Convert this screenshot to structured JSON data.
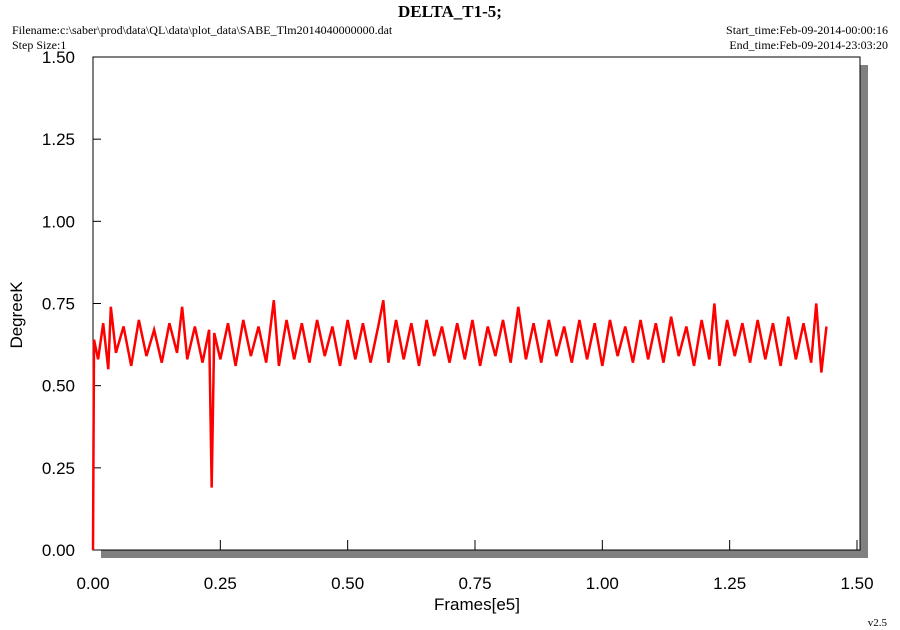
{
  "chart_data": {
    "type": "line",
    "title": "DELTA_T1-5;",
    "filename": "Filename:c:\\saber\\prod\\data\\QL\\data\\plot_data\\SABE_Tlm2014040000000.dat",
    "step_size": "Step Size:1",
    "start_time": "Start_time:Feb-09-2014-00:00:16",
    "end_time": "End_time:Feb-09-2014-23:03:20",
    "version": "v2.5",
    "x_label": "Frames[e5]",
    "y_label": "DegreeK",
    "xlim": [
      0,
      1.5
    ],
    "ylim": [
      0,
      1.5
    ],
    "xticks": [
      {
        "value": 0,
        "label": "0.00"
      },
      {
        "value": 0.25,
        "label": "0.25"
      },
      {
        "value": 0.5,
        "label": "0.50"
      },
      {
        "value": 0.75,
        "label": "0.75"
      },
      {
        "value": 1,
        "label": "1.00"
      },
      {
        "value": 1.25,
        "label": "1.25"
      },
      {
        "value": 1.5,
        "label": "1.50"
      }
    ],
    "yticks": [
      {
        "value": 0,
        "label": "0.00"
      },
      {
        "value": 0.25,
        "label": "0.25"
      },
      {
        "value": 0.5,
        "label": "0.50"
      },
      {
        "value": 0.75,
        "label": "0.75"
      },
      {
        "value": 1,
        "label": "1.00"
      },
      {
        "value": 1.25,
        "label": "1.25"
      },
      {
        "value": 1.5,
        "label": "1.50"
      }
    ],
    "grid": false,
    "series": [
      {
        "color": "#ff0000",
        "x": [
          0,
          0.002,
          0.01,
          0.02,
          0.03,
          0.035,
          0.045,
          0.06,
          0.075,
          0.09,
          0.105,
          0.12,
          0.135,
          0.15,
          0.165,
          0.175,
          0.185,
          0.2,
          0.215,
          0.228,
          0.233,
          0.238,
          0.25,
          0.265,
          0.28,
          0.295,
          0.31,
          0.325,
          0.34,
          0.355,
          0.365,
          0.38,
          0.395,
          0.41,
          0.425,
          0.44,
          0.455,
          0.47,
          0.485,
          0.5,
          0.515,
          0.53,
          0.545,
          0.56,
          0.57,
          0.58,
          0.595,
          0.61,
          0.625,
          0.64,
          0.655,
          0.67,
          0.685,
          0.7,
          0.715,
          0.73,
          0.745,
          0.76,
          0.775,
          0.79,
          0.805,
          0.82,
          0.835,
          0.85,
          0.865,
          0.88,
          0.895,
          0.91,
          0.925,
          0.94,
          0.955,
          0.97,
          0.985,
          1.0,
          1.015,
          1.03,
          1.045,
          1.06,
          1.075,
          1.09,
          1.105,
          1.12,
          1.135,
          1.15,
          1.165,
          1.18,
          1.195,
          1.21,
          1.22,
          1.23,
          1.245,
          1.26,
          1.275,
          1.29,
          1.305,
          1.32,
          1.335,
          1.35,
          1.365,
          1.38,
          1.395,
          1.41,
          1.42,
          1.43,
          1.44
        ],
        "values": [
          0,
          0.64,
          0.58,
          0.69,
          0.55,
          0.74,
          0.6,
          0.68,
          0.56,
          0.7,
          0.59,
          0.67,
          0.57,
          0.69,
          0.6,
          0.74,
          0.58,
          0.68,
          0.57,
          0.67,
          0.19,
          0.66,
          0.58,
          0.69,
          0.56,
          0.7,
          0.59,
          0.68,
          0.57,
          0.76,
          0.56,
          0.7,
          0.58,
          0.69,
          0.57,
          0.7,
          0.59,
          0.68,
          0.56,
          0.7,
          0.58,
          0.69,
          0.57,
          0.68,
          0.76,
          0.57,
          0.7,
          0.58,
          0.69,
          0.56,
          0.7,
          0.59,
          0.68,
          0.57,
          0.69,
          0.58,
          0.7,
          0.56,
          0.68,
          0.59,
          0.7,
          0.57,
          0.74,
          0.58,
          0.69,
          0.57,
          0.7,
          0.59,
          0.68,
          0.57,
          0.7,
          0.58,
          0.69,
          0.56,
          0.7,
          0.59,
          0.68,
          0.57,
          0.7,
          0.58,
          0.69,
          0.57,
          0.71,
          0.59,
          0.68,
          0.56,
          0.7,
          0.58,
          0.75,
          0.56,
          0.7,
          0.59,
          0.69,
          0.57,
          0.7,
          0.58,
          0.69,
          0.56,
          0.71,
          0.58,
          0.69,
          0.57,
          0.75,
          0.54,
          0.68
        ]
      }
    ]
  }
}
